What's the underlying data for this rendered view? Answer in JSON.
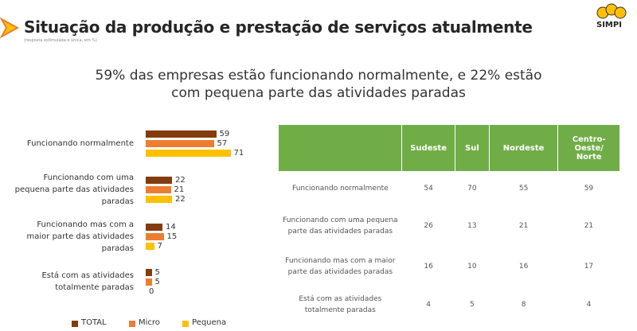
{
  "header": {
    "title": "Situação da produção e prestação de serviços atualmente",
    "note": "(resposta estimulada e única, em %)",
    "logo": "SIMPI"
  },
  "headline": "59% das empresas estão funcionando normalmente, e 22% estão com pequena parte das atividades paradas",
  "chart_data": {
    "type": "bar",
    "orientation": "horizontal",
    "categories": [
      "Funcionando normalmente",
      "Funcionando com uma pequena parte das atividades paradas",
      "Funcionando mas com a maior parte das atividades paradas",
      "Está com as atividades totalmente paradas"
    ],
    "series": [
      {
        "name": "TOTAL",
        "color": "#843c0c",
        "values": [
          59,
          22,
          14,
          5
        ]
      },
      {
        "name": "Micro",
        "color": "#ed7d31",
        "values": [
          57,
          21,
          15,
          5
        ]
      },
      {
        "name": "Pequena",
        "color": "#ffc000",
        "values": [
          71,
          22,
          7,
          0
        ]
      }
    ],
    "legend": "bottom"
  },
  "table": {
    "columns": [
      "Sudeste",
      "Sul",
      "Nordeste",
      "Centro-Oeste/ Norte"
    ],
    "rows": [
      {
        "label": "Funcionando normalmente",
        "values": [
          54,
          70,
          55,
          59
        ]
      },
      {
        "label": "Funcionando com uma pequena parte das atividades paradas",
        "values": [
          26,
          13,
          21,
          21
        ]
      },
      {
        "label": "Funcionando mas com a maior parte das atividades paradas",
        "values": [
          16,
          10,
          16,
          17
        ]
      },
      {
        "label": "Está com as atividades totalmente paradas",
        "values": [
          4,
          5,
          8,
          4
        ]
      }
    ]
  }
}
